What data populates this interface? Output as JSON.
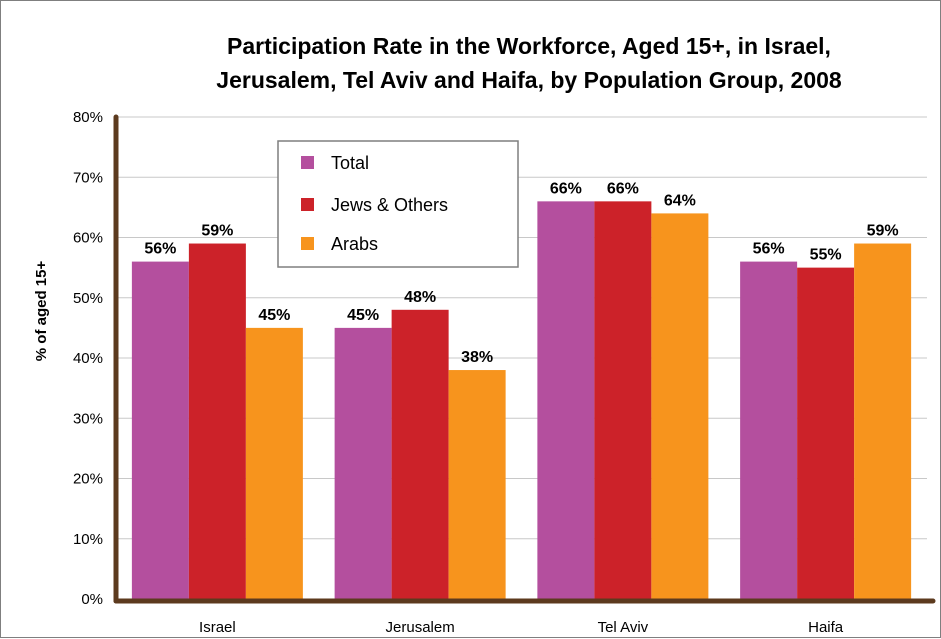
{
  "chart_data": {
    "type": "bar",
    "title_lines": [
      "Participation Rate in the Workforce, Aged 15+, in Israel,",
      "Jerusalem, Tel Aviv and Haifa, by Population Group, 2008"
    ],
    "xlabel": "",
    "ylabel": "% of aged 15+",
    "ylim": [
      0,
      80
    ],
    "y_ticks": [
      "0%",
      "10%",
      "20%",
      "30%",
      "40%",
      "50%",
      "60%",
      "70%",
      "80%"
    ],
    "grid": true,
    "legend_position": "top-center",
    "categories": [
      "Israel",
      "Jerusalem",
      "Tel Aviv",
      "Haifa"
    ],
    "series": [
      {
        "name": "Total",
        "color": "#b44f9e",
        "values": [
          56,
          45,
          66,
          56
        ],
        "labels": [
          "56%",
          "45%",
          "66%",
          "56%"
        ]
      },
      {
        "name": "Jews & Others",
        "color": "#cc2229",
        "values": [
          59,
          48,
          66,
          55
        ],
        "labels": [
          "59%",
          "48%",
          "66%",
          "55%"
        ]
      },
      {
        "name": "Arabs",
        "color": "#f7941d",
        "values": [
          45,
          38,
          64,
          59
        ],
        "labels": [
          "45%",
          "38%",
          "64%",
          "59%"
        ]
      }
    ],
    "axis_color": "#5c3a1e",
    "grid_color": "#c8c8c8"
  }
}
